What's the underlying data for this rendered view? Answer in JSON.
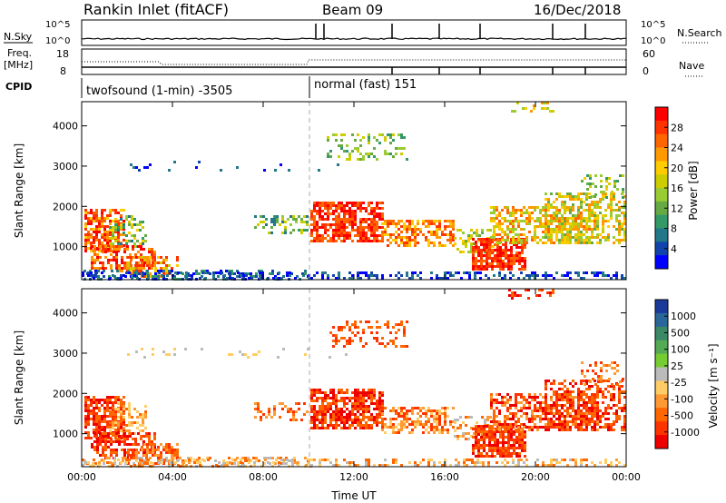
{
  "header": {
    "title": "Rankin Inlet (fitACF)",
    "beam": "Beam 09",
    "date": "16/Dec/2018"
  },
  "top_panels": {
    "nsky_label": "N.Sky",
    "nsky_ticks": [
      "10^5",
      "10^0"
    ],
    "nsearch_label": "N.Search",
    "freq_label": "Freq.",
    "freq_unit": "[MHz]",
    "freq_ticks": [
      "18",
      "8"
    ],
    "nave_ticks": [
      "60",
      "0"
    ],
    "nave_label": "Nave",
    "cpid_label": "CPID",
    "cpid_mode_1": "twofsound (1-min) -3505",
    "cpid_mode_2": "normal (fast) 151"
  },
  "power_colorbar": {
    "label": "Power [dB]",
    "ticks": [
      "28",
      "24",
      "20",
      "16",
      "12",
      "8",
      "4"
    ],
    "colors": [
      "#ff0000",
      "#ff3300",
      "#ff6600",
      "#ff9900",
      "#ffcc00",
      "#cccc00",
      "#99cc33",
      "#66aa44",
      "#339966",
      "#227788",
      "#1144aa",
      "#0000ff"
    ]
  },
  "velocity_colorbar": {
    "label": "Velocity [m s⁻¹]",
    "ticks": [
      "1000",
      "500",
      "100",
      "25",
      "-25",
      "-100",
      "-500",
      "-1000"
    ],
    "colors": [
      "#1a3a99",
      "#2a6699",
      "#3a8866",
      "#55aa55",
      "#77cc33",
      "#bbbbbb",
      "#ffcc66",
      "#ff9933",
      "#ff6600",
      "#ff3300",
      "#ee0000"
    ]
  },
  "chart_data": [
    {
      "type": "heatmap",
      "panel": "power",
      "ylabel": "Slant Range [km]",
      "y_ticks": [
        "1000",
        "2000",
        "3000",
        "4000"
      ],
      "ylim": [
        180,
        4600
      ],
      "x_ticks": [
        "00:00",
        "04:00",
        "08:00",
        "12:00",
        "16:00",
        "20:00",
        "00:00"
      ],
      "xlim_hours": [
        0,
        24
      ],
      "mode_change_hour": 10.0
    },
    {
      "type": "heatmap",
      "panel": "velocity",
      "ylabel": "Slant Range [km]",
      "y_ticks": [
        "1000",
        "2000",
        "3000",
        "4000"
      ],
      "ylim": [
        180,
        4600
      ],
      "x_ticks": [
        "00:00",
        "04:00",
        "08:00",
        "12:00",
        "16:00",
        "20:00",
        "00:00"
      ],
      "xlim_hours": [
        0,
        24
      ],
      "xlabel": "Time UT"
    }
  ]
}
